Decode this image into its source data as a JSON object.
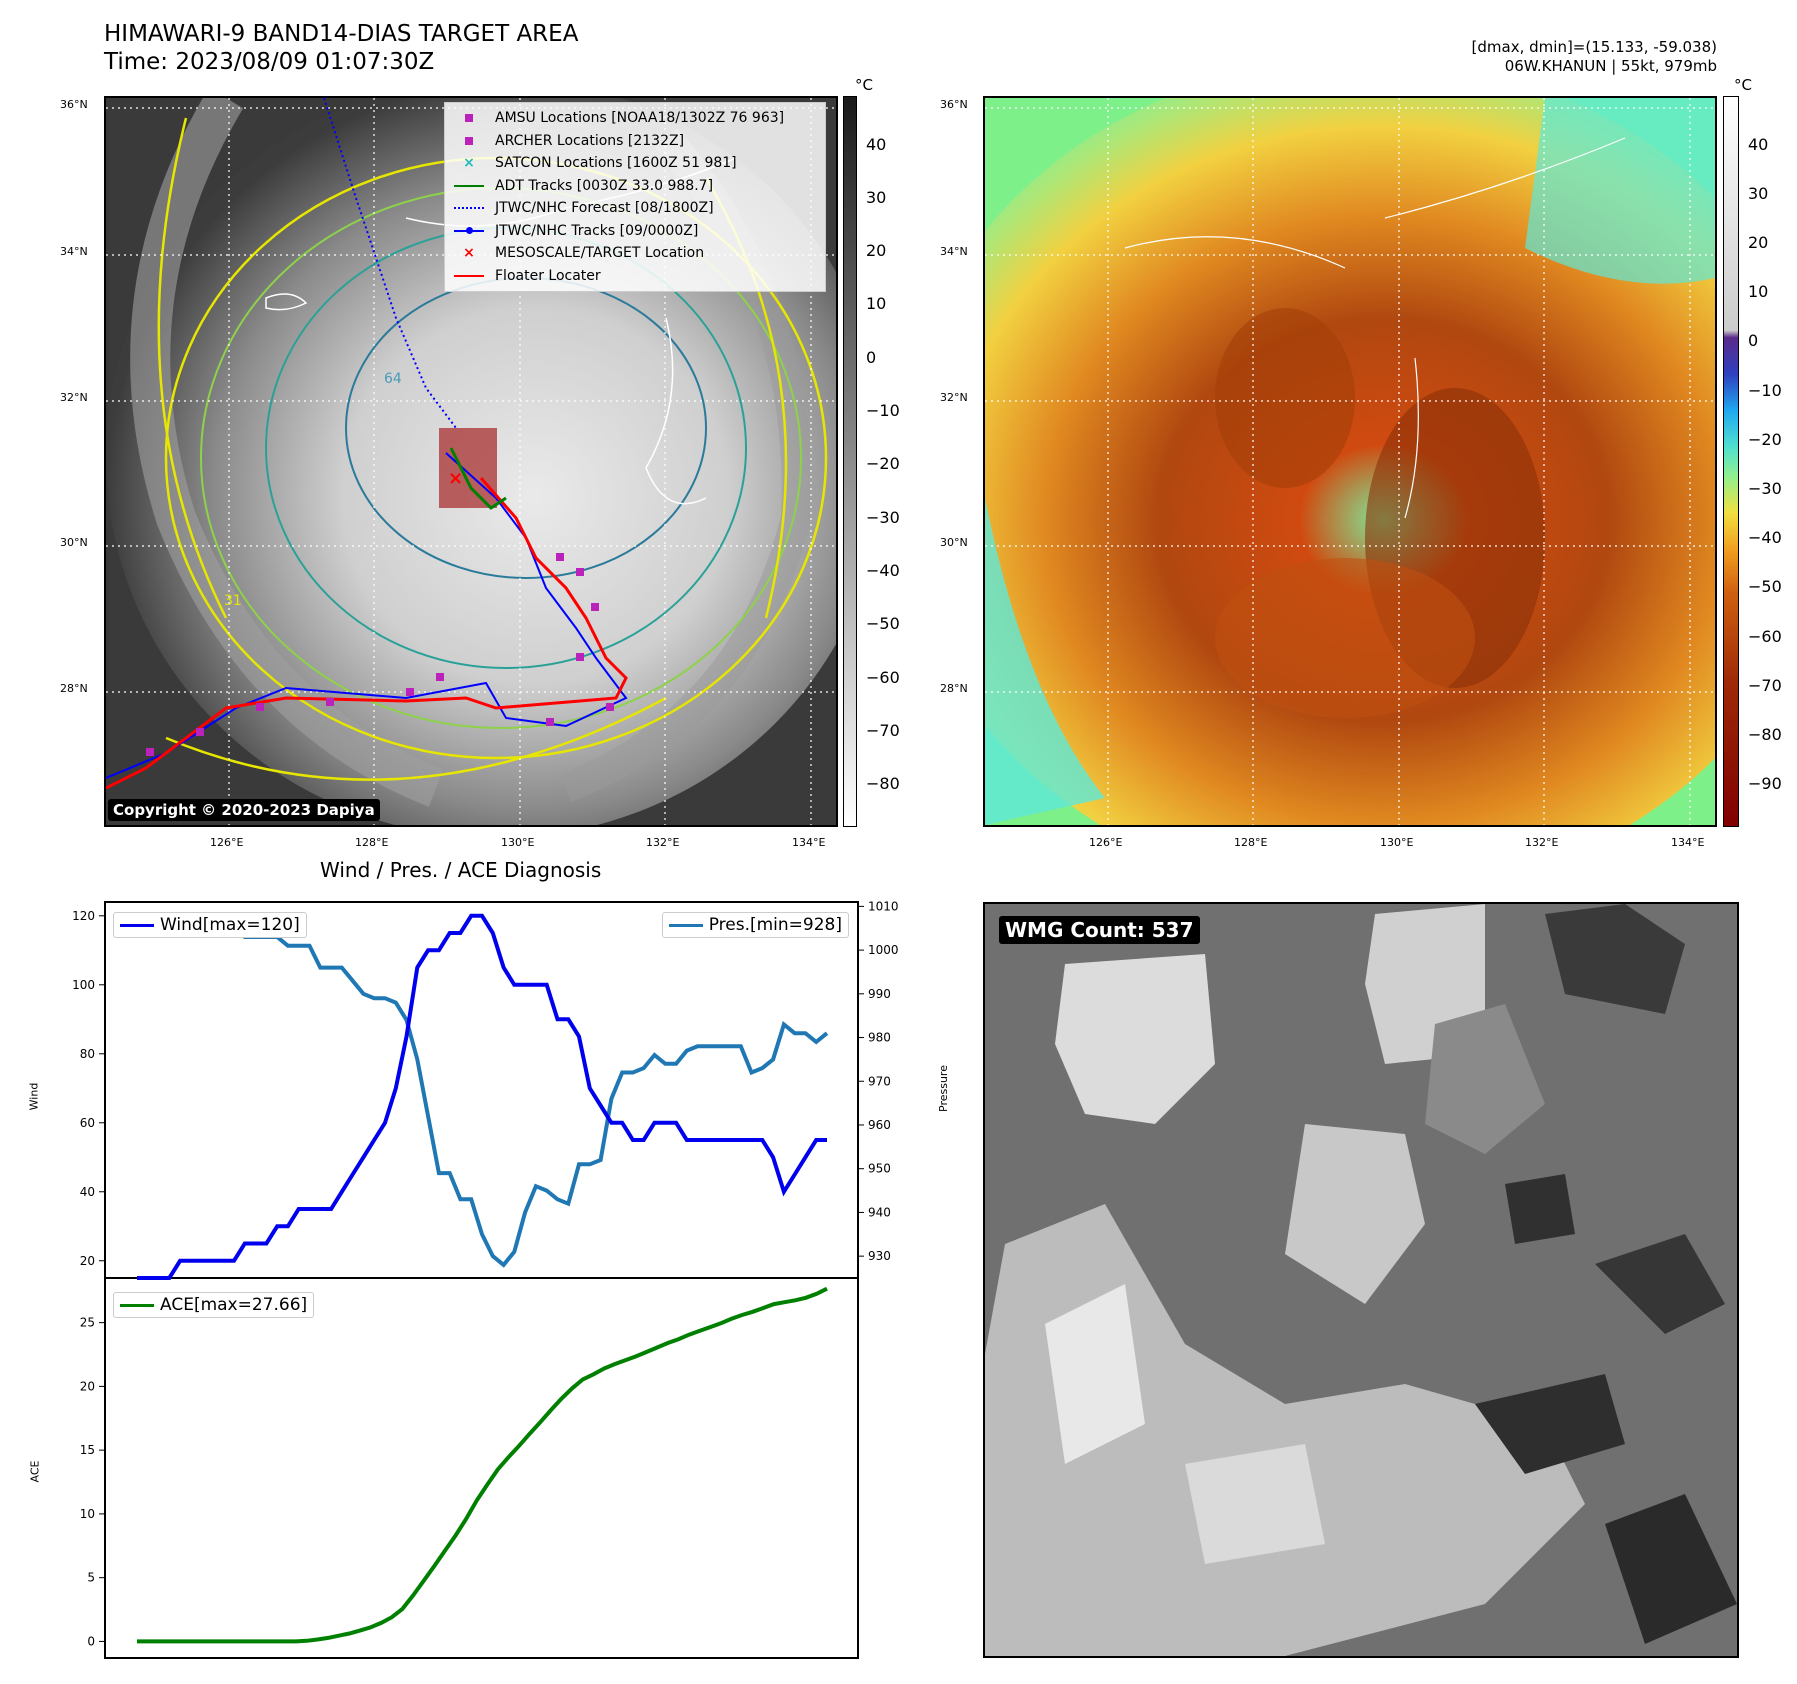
{
  "header": {
    "title": "HIMAWARI-9 BAND14-DIAS TARGET AREA",
    "time": "Time: 2023/08/09 01:07:30Z",
    "dmax_dmin": "[dmax, dmin]=(15.133, -59.038)",
    "storm": "06W.KHANUN | 55kt, 979mb"
  },
  "map_left": {
    "lat_labels": [
      "36°N",
      "34°N",
      "32°N",
      "30°N",
      "28°N"
    ],
    "lon_labels": [
      "126°E",
      "128°E",
      "130°E",
      "132°E",
      "134°E"
    ],
    "copyright": "Copyright © 2020-2023 Dapiya",
    "legend": [
      {
        "label": "AMSU Locations [NOAA18/1302Z 76 963]",
        "symbol": "square",
        "color": "#bb22bb"
      },
      {
        "label": "ARCHER Locations [2132Z]",
        "symbol": "square",
        "color": "#bb22bb"
      },
      {
        "label": "SATCON Locations [1600Z 51 981]",
        "symbol": "x",
        "color": "#22bbbb"
      },
      {
        "label": "ADT Tracks [0030Z 33.0 988.7]",
        "symbol": "line",
        "color": "#008000"
      },
      {
        "label": "JTWC/NHC Forecast [08/1800Z]",
        "symbol": "dotted",
        "color": "#0000ff"
      },
      {
        "label": "JTWC/NHC Tracks [09/0000Z]",
        "symbol": "line-dot",
        "color": "#0000ff"
      },
      {
        "label": "MESOSCALE/TARGET Location",
        "symbol": "x",
        "color": "#ff0000"
      },
      {
        "label": "Floater Locater",
        "symbol": "line",
        "color": "#ff0000"
      }
    ],
    "contour_label_64": "64",
    "contour_label_31": "31",
    "colorbar": {
      "unit": "°C",
      "ticks": [
        "40",
        "30",
        "20",
        "10",
        "0",
        "−10",
        "−20",
        "−30",
        "−40",
        "−50",
        "−60",
        "−70",
        "−80"
      ]
    }
  },
  "map_right": {
    "lat_labels": [
      "36°N",
      "34°N",
      "32°N",
      "30°N",
      "28°N"
    ],
    "lon_labels": [
      "126°E",
      "128°E",
      "130°E",
      "132°E",
      "134°E"
    ],
    "colorbar": {
      "unit": "°C",
      "ticks": [
        "40",
        "30",
        "20",
        "10",
        "0",
        "−10",
        "−20",
        "−30",
        "−40",
        "−50",
        "−60",
        "−70",
        "−80",
        "−90"
      ]
    }
  },
  "wmg": {
    "label": "WMG Count: 537"
  },
  "chart_data": [
    {
      "type": "line",
      "title": "Wind / Pres. / ACE Diagnosis",
      "ylabel": "Wind",
      "y2label": "Pressure",
      "ylim": [
        15,
        124
      ],
      "y2lim": [
        925,
        1011
      ],
      "yticks": [
        20,
        40,
        60,
        80,
        100,
        120
      ],
      "y2ticks": [
        930,
        940,
        950,
        960,
        970,
        980,
        990,
        1000,
        1010
      ],
      "series": [
        {
          "name": "Wind[max=120]",
          "axis": "left",
          "color": "#0000ee",
          "values": [
            15,
            15,
            15,
            15,
            20,
            20,
            20,
            20,
            20,
            20,
            25,
            25,
            25,
            30,
            30,
            35,
            35,
            35,
            35,
            40,
            45,
            50,
            55,
            60,
            70,
            85,
            105,
            110,
            110,
            115,
            115,
            120,
            120,
            115,
            105,
            100,
            100,
            100,
            100,
            90,
            90,
            85,
            70,
            65,
            60,
            60,
            55,
            55,
            60,
            60,
            60,
            55,
            55,
            55,
            55,
            55,
            55,
            55,
            55,
            50,
            40,
            45,
            50,
            55,
            55
          ]
        },
        {
          "name": "Pres.[min=928]",
          "axis": "right",
          "color": "#1f77b4",
          "values": [
            1005,
            1005,
            1005,
            1006,
            1006,
            1006,
            1006,
            1005,
            1005,
            1005,
            1003,
            1003,
            1003,
            1003,
            1001,
            1001,
            1001,
            996,
            996,
            996,
            993,
            990,
            989,
            989,
            988,
            984,
            975,
            962,
            949,
            949,
            943,
            943,
            935,
            930,
            928,
            931,
            940,
            946,
            945,
            943,
            942,
            951,
            951,
            952,
            966,
            972,
            972,
            973,
            976,
            974,
            974,
            977,
            978,
            978,
            978,
            978,
            978,
            972,
            973,
            975,
            983,
            981,
            981,
            979,
            981
          ]
        }
      ]
    },
    {
      "type": "line",
      "ylabel": "ACE",
      "ylim": [
        -1.3,
        28.5
      ],
      "yticks": [
        0,
        5,
        10,
        15,
        20,
        25
      ],
      "series": [
        {
          "name": "ACE[max=27.66]",
          "color": "#008000",
          "values": [
            0,
            0,
            0,
            0,
            0,
            0,
            0,
            0,
            0,
            0,
            0,
            0,
            0,
            0,
            0,
            0,
            0.05,
            0.15,
            0.28,
            0.45,
            0.62,
            0.85,
            1.1,
            1.45,
            1.9,
            2.55,
            3.6,
            4.75,
            5.9,
            7.1,
            8.3,
            9.6,
            11.05,
            12.3,
            13.5,
            14.45,
            15.35,
            16.3,
            17.2,
            18.15,
            19.05,
            19.85,
            20.55,
            20.95,
            21.4,
            21.75,
            22.05,
            22.35,
            22.7,
            23.05,
            23.4,
            23.7,
            24.05,
            24.35,
            24.65,
            24.95,
            25.3,
            25.6,
            25.85,
            26.15,
            26.45,
            26.6,
            26.75,
            26.95,
            27.25,
            27.66
          ]
        }
      ]
    }
  ]
}
